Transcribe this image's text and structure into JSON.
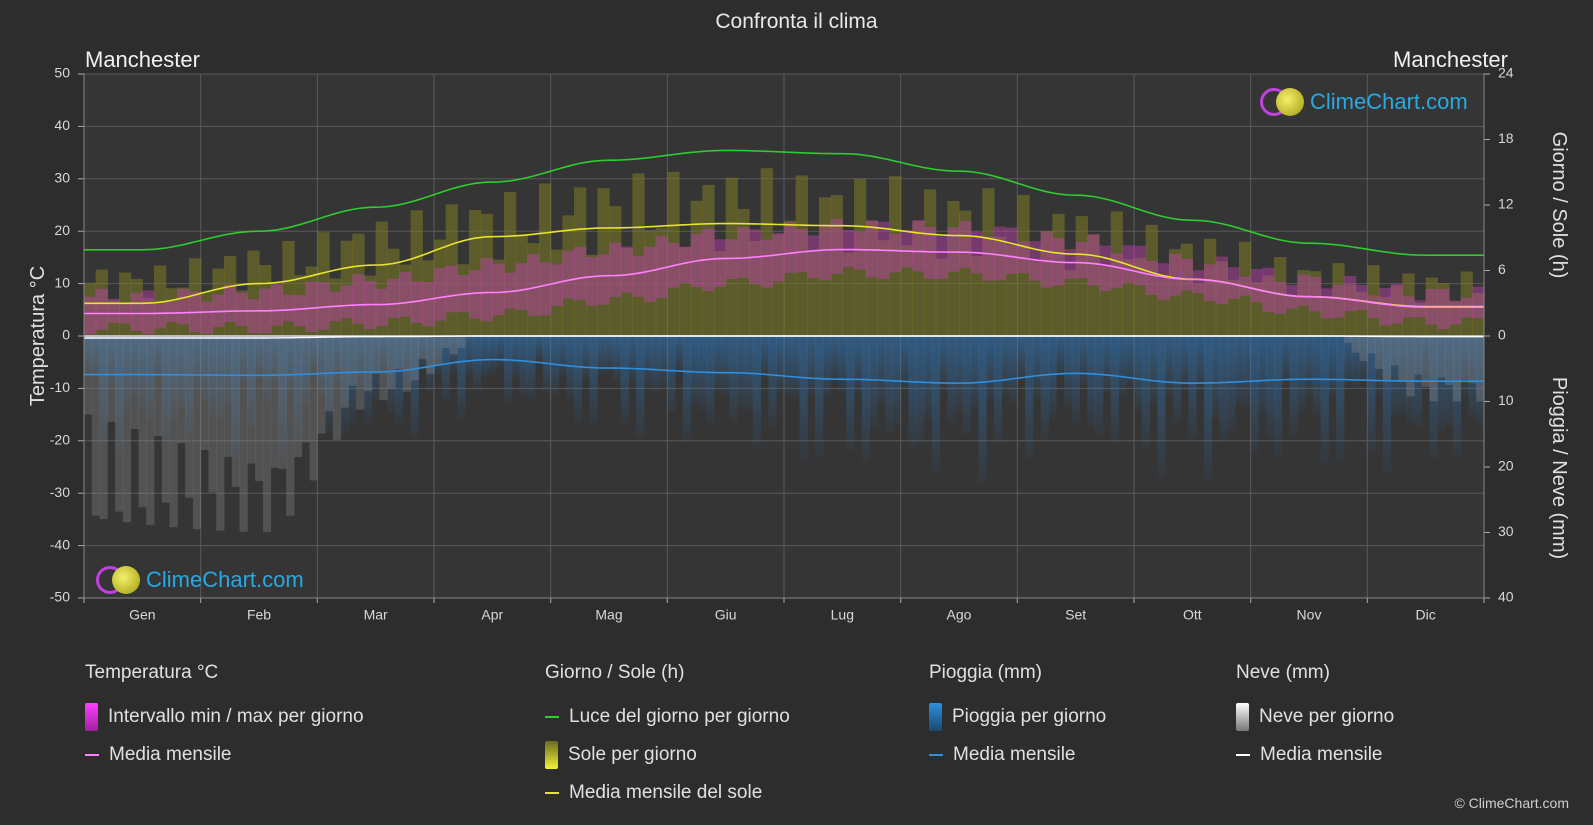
{
  "title": "Confronta il clima",
  "location_left": "Manchester",
  "location_right": "Manchester",
  "axes": {
    "left_label": "Temperatura °C",
    "right_top_label": "Giorno / Sole (h)",
    "right_bottom_label": "Pioggia / Neve (mm)",
    "left_ticks": [
      "50",
      "40",
      "30",
      "20",
      "10",
      "0",
      "-10",
      "-20",
      "-30",
      "-40",
      "-50"
    ],
    "right_top_ticks": [
      "24",
      "18",
      "12",
      "6",
      "0"
    ],
    "right_bottom_ticks": [
      "10",
      "20",
      "30",
      "40"
    ]
  },
  "logo_text": "ClimeChart.com",
  "copyright": "© ClimeChart.com",
  "colors": {
    "background": "#2d2d2d",
    "daylight": "#2ecc2e",
    "sunshine_mean": "#e6e62a",
    "temp_mean": "#ff80ff",
    "rain_mean": "#2e8fe0",
    "snow_mean": "#ffffff"
  },
  "legend": {
    "temperature": {
      "heading": "Temperatura °C",
      "range_label": "Intervallo min / max per giorno",
      "mean_label": "Media mensile"
    },
    "sun": {
      "heading": "Giorno / Sole (h)",
      "daylight_label": "Luce del giorno per giorno",
      "sunshine_label": "Sole per giorno",
      "mean_label": "Media mensile del sole"
    },
    "rain": {
      "heading": "Pioggia (mm)",
      "daily_label": "Pioggia per giorno",
      "mean_label": "Media mensile"
    },
    "snow": {
      "heading": "Neve (mm)",
      "daily_label": "Neve per giorno",
      "mean_label": "Media mensile"
    }
  },
  "chart_data": {
    "type": "line",
    "categories": [
      "Gen",
      "Feb",
      "Mar",
      "Apr",
      "Mag",
      "Giu",
      "Lug",
      "Ago",
      "Set",
      "Ott",
      "Nov",
      "Dic"
    ],
    "temp_ylim": [
      -50,
      50
    ],
    "sun_ylim": [
      0,
      24
    ],
    "precip_ylim": [
      0,
      40
    ],
    "series": [
      {
        "name": "Luce del giorno per giorno",
        "axis": "sun_h",
        "values": [
          7.9,
          9.6,
          11.8,
          14.1,
          16.1,
          17.0,
          16.7,
          15.1,
          12.9,
          10.6,
          8.5,
          7.4
        ]
      },
      {
        "name": "Media mensile del sole",
        "axis": "sun_h",
        "values": [
          3.0,
          4.8,
          6.5,
          9.1,
          9.9,
          10.3,
          10.1,
          9.2,
          7.5,
          5.2,
          3.6,
          2.7
        ]
      },
      {
        "name": "Media mensile",
        "axis": "temp_c",
        "values": [
          4.3,
          4.8,
          6.0,
          8.3,
          11.5,
          14.8,
          16.5,
          16.0,
          14.0,
          10.8,
          7.5,
          5.5
        ]
      },
      {
        "name": "Media mensile",
        "axis": "rain_mm",
        "values": [
          5.9,
          6.0,
          5.5,
          3.6,
          4.9,
          5.6,
          6.6,
          7.2,
          5.7,
          7.2,
          6.6,
          6.9
        ]
      },
      {
        "name": "Media mensile",
        "axis": "snow_mm",
        "values": [
          0.3,
          0.3,
          0.1,
          0,
          0,
          0,
          0,
          0,
          0,
          0,
          0,
          0.1
        ]
      }
    ],
    "temp_range": {
      "min": [
        1.5,
        1.5,
        2.5,
        4.0,
        7.0,
        10.0,
        12.0,
        11.8,
        10.0,
        7.5,
        4.5,
        2.5
      ],
      "max": [
        7.5,
        8.5,
        10.5,
        13.5,
        16.5,
        19.5,
        21.0,
        20.5,
        18.0,
        14.0,
        10.5,
        8.0
      ]
    },
    "sunshine_daily_max_h": [
      6.5,
      8.5,
      11.0,
      13.5,
      15.0,
      15.5,
      15.0,
      14.0,
      12.0,
      9.5,
      7.0,
      6.0
    ],
    "grid": true
  }
}
